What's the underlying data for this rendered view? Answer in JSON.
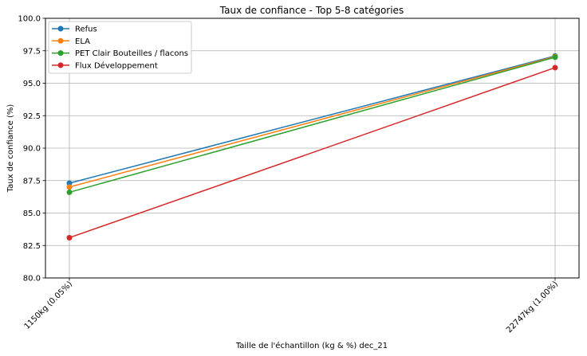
{
  "chart_data": {
    "type": "line",
    "title": "Taux de confiance - Top 5-8 catégories",
    "xlabel": "Taille de l'échantillon (kg & %) dec_21",
    "ylabel": "Taux de confiance (%)",
    "categories": [
      "1150kg (0.05%)",
      "22747kg (1.00%)"
    ],
    "ylim": [
      80.0,
      100.0
    ],
    "yticks": [
      "80.0",
      "82.5",
      "85.0",
      "87.5",
      "90.0",
      "92.5",
      "95.0",
      "97.5",
      "100.0"
    ],
    "grid": true,
    "legend_position": "top-left",
    "series": [
      {
        "name": "Refus",
        "values": [
          87.3,
          97.1
        ],
        "color": "#1f77b4"
      },
      {
        "name": "ELA",
        "values": [
          87.0,
          97.05
        ],
        "color": "#ff7f0e"
      },
      {
        "name": "PET Clair Bouteilles / flacons",
        "values": [
          86.6,
          97.0
        ],
        "color": "#2ca02c"
      },
      {
        "name": "Flux Développement",
        "values": [
          83.1,
          96.2
        ],
        "color": "#d62728"
      }
    ]
  }
}
